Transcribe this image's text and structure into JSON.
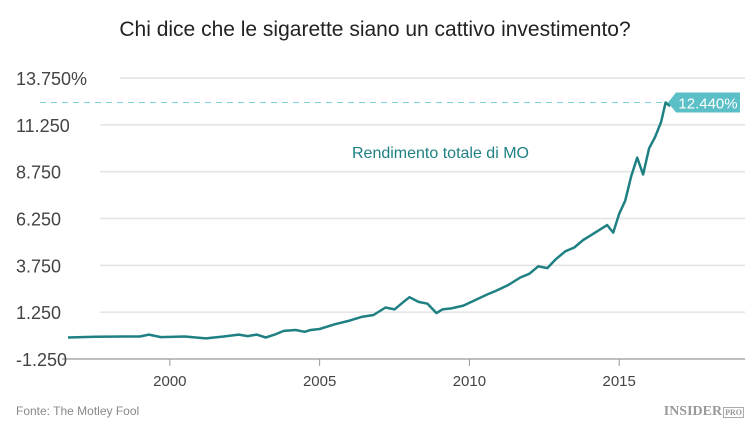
{
  "title": "Chi dice che le sigarette siano un cattivo investimento?",
  "source": "Fonte: The Motley Fool",
  "logo": {
    "main": "INSIDER",
    "suffix": "PRO"
  },
  "chart_data": {
    "type": "line",
    "title": "Chi dice che le sigarette siano un cattivo investimento?",
    "xlabel": "",
    "ylabel": "",
    "xlim": [
      1996.5,
      2019.2
    ],
    "ylim": [
      -1250,
      13750
    ],
    "yticks": [
      -1250,
      1250,
      3750,
      6250,
      8750,
      11250,
      13750
    ],
    "ytick_labels": [
      "-1.250",
      "1.250",
      "3.750",
      "6.250",
      "8.750",
      "11.250",
      "13.750%"
    ],
    "xticks": [
      2000,
      2005,
      2010,
      2015
    ],
    "xtick_labels": [
      "2000",
      "2005",
      "2010",
      "2015"
    ],
    "grid": true,
    "series_label": "Rendimento totale di MO",
    "end_label": "12.440%",
    "end_value": 12440,
    "colors": {
      "line": "#1f8083",
      "label_bg": "#5bbfc7",
      "dash": "#7fcfd8",
      "grid": "#e3e3e3"
    },
    "series": [
      {
        "name": "Rendimento totale di MO",
        "x": [
          1996.6,
          1997.5,
          1998.5,
          1999.0,
          1999.3,
          1999.7,
          2000.5,
          2001.2,
          2001.8,
          2002.3,
          2002.6,
          2002.9,
          2003.2,
          2003.5,
          2003.8,
          2004.2,
          2004.5,
          2004.7,
          2005.0,
          2005.5,
          2006.0,
          2006.4,
          2006.8,
          2007.2,
          2007.5,
          2007.8,
          2008.0,
          2008.3,
          2008.6,
          2008.9,
          2009.1,
          2009.4,
          2009.8,
          2010.2,
          2010.6,
          2010.9,
          2011.3,
          2011.7,
          2012.0,
          2012.3,
          2012.6,
          2012.9,
          2013.2,
          2013.5,
          2013.8,
          2014.0,
          2014.3,
          2014.6,
          2014.8,
          2015.0,
          2015.2,
          2015.4,
          2015.6,
          2015.8,
          2016.0,
          2016.2,
          2016.4,
          2016.55,
          2016.7
        ],
        "y": [
          -100,
          -60,
          -50,
          -50,
          50,
          -80,
          -50,
          -150,
          -50,
          50,
          -30,
          50,
          -100,
          50,
          250,
          300,
          200,
          300,
          350,
          600,
          800,
          1000,
          1100,
          1500,
          1400,
          1800,
          2050,
          1800,
          1700,
          1200,
          1400,
          1450,
          1600,
          1900,
          2200,
          2400,
          2700,
          3100,
          3300,
          3700,
          3600,
          4100,
          4500,
          4700,
          5100,
          5300,
          5600,
          5900,
          5500,
          6500,
          7200,
          8500,
          9500,
          8600,
          10000,
          10600,
          11400,
          12440,
          12250
        ]
      }
    ]
  }
}
